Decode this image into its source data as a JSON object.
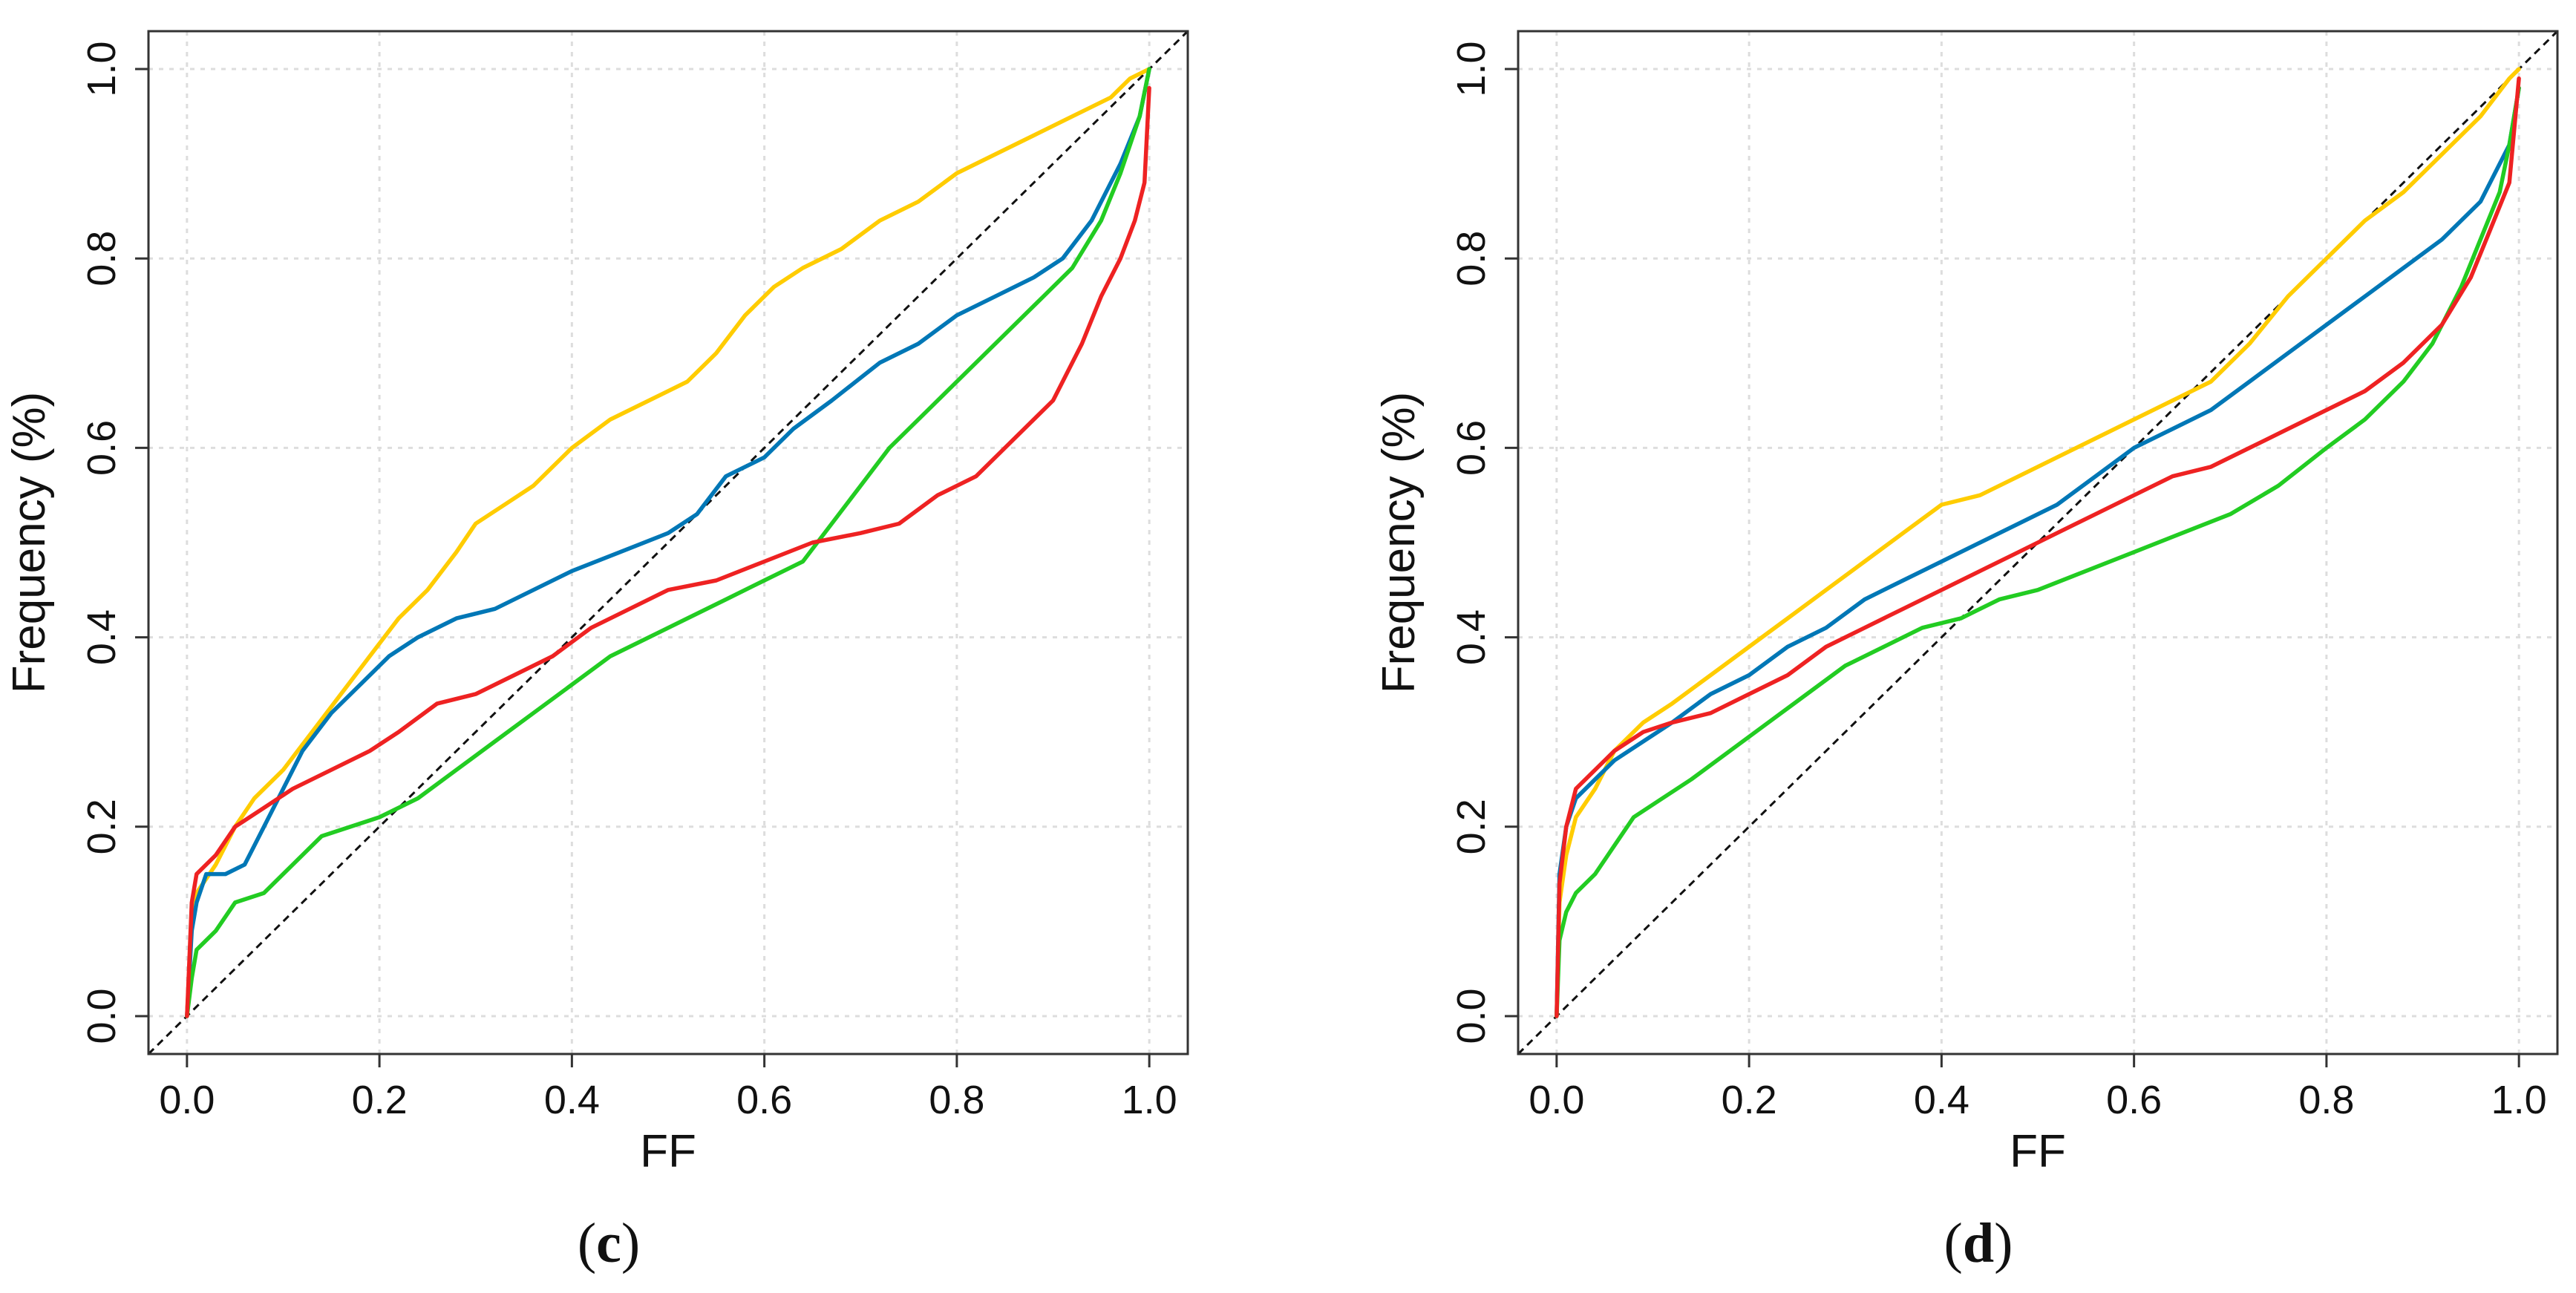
{
  "chart_data": [
    {
      "type": "line",
      "panel_label": {
        "open": "(",
        "letter": "c",
        "close": ")"
      },
      "xlabel": "FF",
      "ylabel": "Frequency (%)",
      "xlim": [
        -0.04,
        1.04
      ],
      "ylim": [
        -0.04,
        1.04
      ],
      "x_ticks": [
        "0.0",
        "0.2",
        "0.4",
        "0.6",
        "0.8",
        "1.0"
      ],
      "y_ticks": [
        "0.0",
        "0.2",
        "0.4",
        "0.6",
        "0.8",
        "1.0"
      ],
      "grid": true,
      "reference_line": {
        "style": "dashed",
        "from": [
          -0.04,
          -0.04
        ],
        "to": [
          1.04,
          1.04
        ]
      },
      "series": [
        {
          "color": "#ffcc00",
          "points": [
            [
              0,
              0
            ],
            [
              0.005,
              0.1
            ],
            [
              0.01,
              0.13
            ],
            [
              0.03,
              0.16
            ],
            [
              0.05,
              0.2
            ],
            [
              0.07,
              0.23
            ],
            [
              0.1,
              0.26
            ],
            [
              0.13,
              0.3
            ],
            [
              0.16,
              0.34
            ],
            [
              0.19,
              0.38
            ],
            [
              0.22,
              0.42
            ],
            [
              0.25,
              0.45
            ],
            [
              0.28,
              0.49
            ],
            [
              0.3,
              0.52
            ],
            [
              0.33,
              0.54
            ],
            [
              0.36,
              0.56
            ],
            [
              0.4,
              0.6
            ],
            [
              0.44,
              0.63
            ],
            [
              0.48,
              0.65
            ],
            [
              0.52,
              0.67
            ],
            [
              0.55,
              0.7
            ],
            [
              0.58,
              0.74
            ],
            [
              0.61,
              0.77
            ],
            [
              0.64,
              0.79
            ],
            [
              0.68,
              0.81
            ],
            [
              0.72,
              0.84
            ],
            [
              0.76,
              0.86
            ],
            [
              0.8,
              0.89
            ],
            [
              0.84,
              0.91
            ],
            [
              0.88,
              0.93
            ],
            [
              0.92,
              0.95
            ],
            [
              0.96,
              0.97
            ],
            [
              0.98,
              0.99
            ],
            [
              1.0,
              1.0
            ]
          ]
        },
        {
          "color": "#0077b6",
          "points": [
            [
              0,
              0
            ],
            [
              0.005,
              0.09
            ],
            [
              0.01,
              0.12
            ],
            [
              0.02,
              0.15
            ],
            [
              0.04,
              0.15
            ],
            [
              0.06,
              0.16
            ],
            [
              0.08,
              0.2
            ],
            [
              0.1,
              0.24
            ],
            [
              0.12,
              0.28
            ],
            [
              0.15,
              0.32
            ],
            [
              0.18,
              0.35
            ],
            [
              0.21,
              0.38
            ],
            [
              0.24,
              0.4
            ],
            [
              0.28,
              0.42
            ],
            [
              0.32,
              0.43
            ],
            [
              0.36,
              0.45
            ],
            [
              0.4,
              0.47
            ],
            [
              0.45,
              0.49
            ],
            [
              0.5,
              0.51
            ],
            [
              0.53,
              0.53
            ],
            [
              0.56,
              0.57
            ],
            [
              0.6,
              0.59
            ],
            [
              0.63,
              0.62
            ],
            [
              0.67,
              0.65
            ],
            [
              0.72,
              0.69
            ],
            [
              0.76,
              0.71
            ],
            [
              0.8,
              0.74
            ],
            [
              0.84,
              0.76
            ],
            [
              0.88,
              0.78
            ],
            [
              0.91,
              0.8
            ],
            [
              0.94,
              0.84
            ],
            [
              0.97,
              0.9
            ],
            [
              0.99,
              0.95
            ],
            [
              1.0,
              1.0
            ]
          ]
        },
        {
          "color": "#22cc22",
          "points": [
            [
              0,
              0
            ],
            [
              0.005,
              0.04
            ],
            [
              0.01,
              0.07
            ],
            [
              0.03,
              0.09
            ],
            [
              0.05,
              0.12
            ],
            [
              0.08,
              0.13
            ],
            [
              0.11,
              0.16
            ],
            [
              0.14,
              0.19
            ],
            [
              0.17,
              0.2
            ],
            [
              0.2,
              0.21
            ],
            [
              0.24,
              0.23
            ],
            [
              0.28,
              0.26
            ],
            [
              0.32,
              0.29
            ],
            [
              0.36,
              0.32
            ],
            [
              0.4,
              0.35
            ],
            [
              0.44,
              0.38
            ],
            [
              0.48,
              0.4
            ],
            [
              0.52,
              0.42
            ],
            [
              0.56,
              0.44
            ],
            [
              0.6,
              0.46
            ],
            [
              0.64,
              0.48
            ],
            [
              0.67,
              0.52
            ],
            [
              0.7,
              0.56
            ],
            [
              0.73,
              0.6
            ],
            [
              0.77,
              0.64
            ],
            [
              0.81,
              0.68
            ],
            [
              0.85,
              0.72
            ],
            [
              0.89,
              0.76
            ],
            [
              0.92,
              0.79
            ],
            [
              0.95,
              0.84
            ],
            [
              0.97,
              0.89
            ],
            [
              0.99,
              0.95
            ],
            [
              1.0,
              1.0
            ]
          ]
        },
        {
          "color": "#ee2222",
          "points": [
            [
              0,
              0
            ],
            [
              0.005,
              0.12
            ],
            [
              0.01,
              0.15
            ],
            [
              0.03,
              0.17
            ],
            [
              0.05,
              0.2
            ],
            [
              0.08,
              0.22
            ],
            [
              0.11,
              0.24
            ],
            [
              0.15,
              0.26
            ],
            [
              0.19,
              0.28
            ],
            [
              0.22,
              0.3
            ],
            [
              0.26,
              0.33
            ],
            [
              0.3,
              0.34
            ],
            [
              0.34,
              0.36
            ],
            [
              0.38,
              0.38
            ],
            [
              0.42,
              0.41
            ],
            [
              0.46,
              0.43
            ],
            [
              0.5,
              0.45
            ],
            [
              0.55,
              0.46
            ],
            [
              0.6,
              0.48
            ],
            [
              0.65,
              0.5
            ],
            [
              0.7,
              0.51
            ],
            [
              0.74,
              0.52
            ],
            [
              0.78,
              0.55
            ],
            [
              0.82,
              0.57
            ],
            [
              0.86,
              0.61
            ],
            [
              0.9,
              0.65
            ],
            [
              0.93,
              0.71
            ],
            [
              0.95,
              0.76
            ],
            [
              0.97,
              0.8
            ],
            [
              0.985,
              0.84
            ],
            [
              0.995,
              0.88
            ],
            [
              1.0,
              0.98
            ]
          ]
        }
      ]
    },
    {
      "type": "line",
      "panel_label": {
        "open": "(",
        "letter": "d",
        "close": ")"
      },
      "xlabel": "FF",
      "ylabel": "Frequency (%)",
      "xlim": [
        -0.04,
        1.04
      ],
      "ylim": [
        -0.04,
        1.04
      ],
      "x_ticks": [
        "0.0",
        "0.2",
        "0.4",
        "0.6",
        "0.8",
        "1.0"
      ],
      "y_ticks": [
        "0.0",
        "0.2",
        "0.4",
        "0.6",
        "0.8",
        "1.0"
      ],
      "grid": true,
      "reference_line": {
        "style": "dashed",
        "from": [
          -0.04,
          -0.04
        ],
        "to": [
          1.04,
          1.04
        ]
      },
      "series": [
        {
          "color": "#ffcc00",
          "points": [
            [
              0,
              0
            ],
            [
              0.003,
              0.12
            ],
            [
              0.01,
              0.17
            ],
            [
              0.02,
              0.21
            ],
            [
              0.04,
              0.24
            ],
            [
              0.06,
              0.28
            ],
            [
              0.09,
              0.31
            ],
            [
              0.12,
              0.33
            ],
            [
              0.16,
              0.36
            ],
            [
              0.2,
              0.39
            ],
            [
              0.24,
              0.42
            ],
            [
              0.28,
              0.45
            ],
            [
              0.32,
              0.48
            ],
            [
              0.36,
              0.51
            ],
            [
              0.4,
              0.54
            ],
            [
              0.44,
              0.55
            ],
            [
              0.48,
              0.57
            ],
            [
              0.52,
              0.59
            ],
            [
              0.56,
              0.61
            ],
            [
              0.6,
              0.63
            ],
            [
              0.64,
              0.65
            ],
            [
              0.68,
              0.67
            ],
            [
              0.72,
              0.71
            ],
            [
              0.76,
              0.76
            ],
            [
              0.8,
              0.8
            ],
            [
              0.84,
              0.84
            ],
            [
              0.88,
              0.87
            ],
            [
              0.92,
              0.91
            ],
            [
              0.96,
              0.95
            ],
            [
              0.99,
              0.99
            ],
            [
              1.0,
              1.0
            ]
          ]
        },
        {
          "color": "#0077b6",
          "points": [
            [
              0,
              0
            ],
            [
              0.003,
              0.15
            ],
            [
              0.01,
              0.2
            ],
            [
              0.02,
              0.23
            ],
            [
              0.04,
              0.25
            ],
            [
              0.06,
              0.27
            ],
            [
              0.09,
              0.29
            ],
            [
              0.12,
              0.31
            ],
            [
              0.16,
              0.34
            ],
            [
              0.2,
              0.36
            ],
            [
              0.24,
              0.39
            ],
            [
              0.28,
              0.41
            ],
            [
              0.32,
              0.44
            ],
            [
              0.36,
              0.46
            ],
            [
              0.4,
              0.48
            ],
            [
              0.44,
              0.5
            ],
            [
              0.48,
              0.52
            ],
            [
              0.52,
              0.54
            ],
            [
              0.56,
              0.57
            ],
            [
              0.6,
              0.6
            ],
            [
              0.64,
              0.62
            ],
            [
              0.68,
              0.64
            ],
            [
              0.72,
              0.67
            ],
            [
              0.76,
              0.7
            ],
            [
              0.8,
              0.73
            ],
            [
              0.84,
              0.76
            ],
            [
              0.88,
              0.79
            ],
            [
              0.92,
              0.82
            ],
            [
              0.96,
              0.86
            ],
            [
              0.99,
              0.92
            ],
            [
              1.0,
              0.98
            ]
          ]
        },
        {
          "color": "#22cc22",
          "points": [
            [
              0,
              0
            ],
            [
              0.003,
              0.08
            ],
            [
              0.01,
              0.11
            ],
            [
              0.02,
              0.13
            ],
            [
              0.04,
              0.15
            ],
            [
              0.06,
              0.18
            ],
            [
              0.08,
              0.21
            ],
            [
              0.11,
              0.23
            ],
            [
              0.14,
              0.25
            ],
            [
              0.18,
              0.28
            ],
            [
              0.22,
              0.31
            ],
            [
              0.26,
              0.34
            ],
            [
              0.3,
              0.37
            ],
            [
              0.34,
              0.39
            ],
            [
              0.38,
              0.41
            ],
            [
              0.42,
              0.42
            ],
            [
              0.46,
              0.44
            ],
            [
              0.5,
              0.45
            ],
            [
              0.55,
              0.47
            ],
            [
              0.6,
              0.49
            ],
            [
              0.65,
              0.51
            ],
            [
              0.7,
              0.53
            ],
            [
              0.75,
              0.56
            ],
            [
              0.8,
              0.6
            ],
            [
              0.84,
              0.63
            ],
            [
              0.88,
              0.67
            ],
            [
              0.91,
              0.71
            ],
            [
              0.94,
              0.77
            ],
            [
              0.96,
              0.82
            ],
            [
              0.98,
              0.87
            ],
            [
              0.99,
              0.92
            ],
            [
              1.0,
              0.98
            ]
          ]
        },
        {
          "color": "#ee2222",
          "points": [
            [
              0,
              0
            ],
            [
              0.003,
              0.14
            ],
            [
              0.01,
              0.2
            ],
            [
              0.02,
              0.24
            ],
            [
              0.04,
              0.26
            ],
            [
              0.06,
              0.28
            ],
            [
              0.09,
              0.3
            ],
            [
              0.12,
              0.31
            ],
            [
              0.16,
              0.32
            ],
            [
              0.2,
              0.34
            ],
            [
              0.24,
              0.36
            ],
            [
              0.28,
              0.39
            ],
            [
              0.32,
              0.41
            ],
            [
              0.36,
              0.43
            ],
            [
              0.4,
              0.45
            ],
            [
              0.44,
              0.47
            ],
            [
              0.48,
              0.49
            ],
            [
              0.52,
              0.51
            ],
            [
              0.56,
              0.53
            ],
            [
              0.6,
              0.55
            ],
            [
              0.64,
              0.57
            ],
            [
              0.68,
              0.58
            ],
            [
              0.72,
              0.6
            ],
            [
              0.76,
              0.62
            ],
            [
              0.8,
              0.64
            ],
            [
              0.84,
              0.66
            ],
            [
              0.88,
              0.69
            ],
            [
              0.92,
              0.73
            ],
            [
              0.95,
              0.78
            ],
            [
              0.97,
              0.83
            ],
            [
              0.99,
              0.88
            ],
            [
              1.0,
              0.99
            ]
          ]
        }
      ]
    }
  ]
}
